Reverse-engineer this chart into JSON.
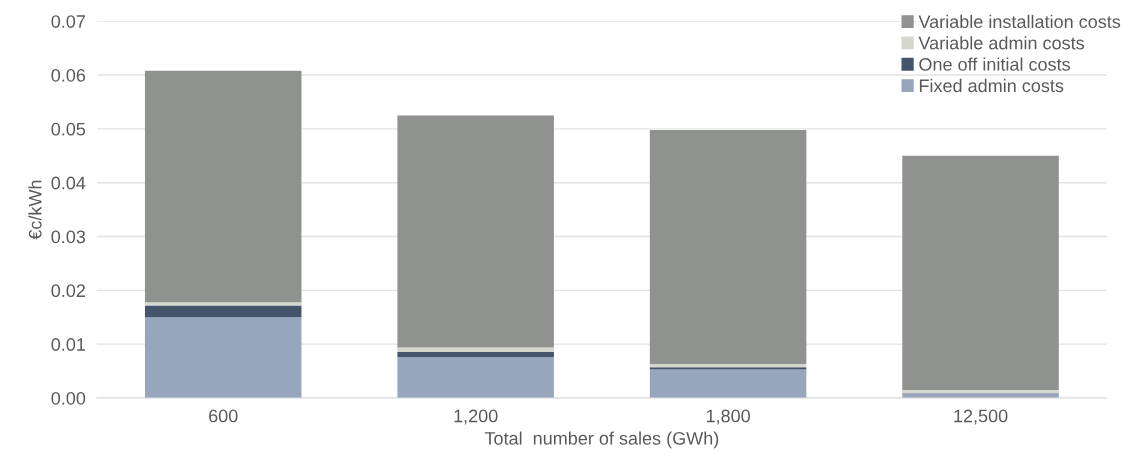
{
  "chart_data": {
    "type": "bar",
    "stacked": true,
    "xlabel": "Total  number of sales (GWh)",
    "ylabel": "€c/kWh",
    "categories": [
      "600",
      "1,200",
      "1,800",
      "12,500"
    ],
    "series": [
      {
        "name": "Fixed admin costs",
        "color": "#97a6bd",
        "values": [
          0.015,
          0.0076,
          0.0053,
          0.0008
        ]
      },
      {
        "name": "One off initial costs",
        "color": "#44546a",
        "values": [
          0.0022,
          0.001,
          0.0004,
          0.0001
        ]
      },
      {
        "name": "Variable admin costs",
        "color": "#d5d6ce",
        "values": [
          0.0006,
          0.0008,
          0.0006,
          0.0006
        ]
      },
      {
        "name": "Variable installation costs",
        "color": "#8f928e",
        "values": [
          0.043,
          0.0431,
          0.0435,
          0.0435
        ]
      }
    ],
    "ylim": [
      0,
      0.07
    ],
    "yticks": [
      {
        "value": 0,
        "label": "0.00"
      },
      {
        "value": 0.01,
        "label": "0.01"
      },
      {
        "value": 0.02,
        "label": "0.02"
      },
      {
        "value": 0.03,
        "label": "0.03"
      },
      {
        "value": 0.04,
        "label": "0.04"
      },
      {
        "value": 0.05,
        "label": "0.05"
      },
      {
        "value": 0.06,
        "label": "0.06"
      },
      {
        "value": 0.07,
        "label": "0.07"
      }
    ],
    "grid": "y",
    "legend": "top right"
  }
}
